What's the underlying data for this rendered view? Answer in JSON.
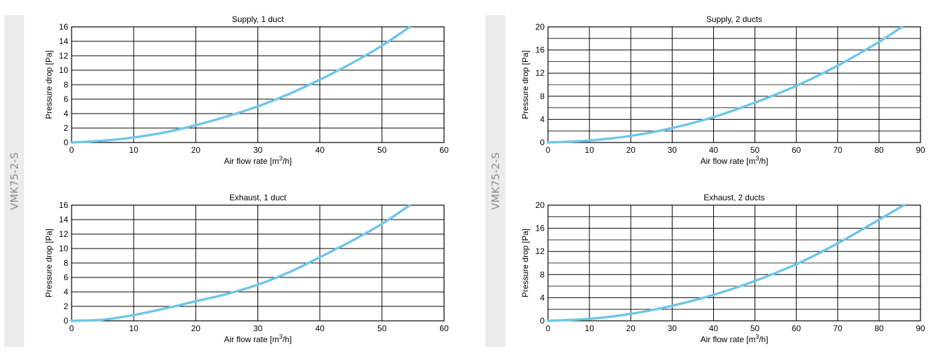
{
  "side_labels": {
    "left": "VMK75-2-S",
    "right": "VMK75-2-S"
  },
  "colors": {
    "curve": "#6ec6e8",
    "grid": "#000000",
    "side_panel": "#ebebeb",
    "side_text": "#8a8a8a"
  },
  "chart_data": [
    {
      "type": "line",
      "title": "Supply, 1 duct",
      "xlabel": "Air flow rate [m³/h]",
      "ylabel": "Pressure drop [Pa]",
      "xlim": [
        0,
        60
      ],
      "ylim": [
        0,
        16
      ],
      "xticks": [
        0,
        10,
        20,
        30,
        40,
        50,
        60
      ],
      "yticks": [
        0,
        2,
        4,
        6,
        8,
        10,
        12,
        14,
        16
      ],
      "grid": true,
      "series": [
        {
          "x": [
            0,
            5,
            10,
            15,
            20,
            25,
            30,
            35,
            40,
            45,
            50,
            54.5
          ],
          "y": [
            0,
            0.25,
            0.7,
            1.4,
            2.4,
            3.6,
            5.0,
            6.7,
            8.7,
            10.9,
            13.4,
            16.0
          ]
        }
      ]
    },
    {
      "type": "line",
      "title": "Supply, 2 ducts",
      "xlabel": "Air flow rate [m³/h]",
      "ylabel": "Pressure drop [Pa]",
      "xlim": [
        0,
        90
      ],
      "ylim": [
        0,
        20
      ],
      "xticks": [
        0,
        10,
        20,
        30,
        40,
        50,
        60,
        70,
        80,
        90
      ],
      "yticks": [
        0,
        4,
        8,
        12,
        16,
        20
      ],
      "grid": true,
      "series": [
        {
          "x": [
            0,
            10,
            20,
            30,
            40,
            50,
            60,
            70,
            80,
            85.5
          ],
          "y": [
            0,
            0.35,
            1.15,
            2.5,
            4.4,
            6.9,
            9.8,
            13.3,
            17.4,
            20.0
          ]
        }
      ]
    },
    {
      "type": "line",
      "title": "Exhaust, 1 duct",
      "xlabel": "Air flow rate [m³/h]",
      "ylabel": "Pressure drop [Pa]",
      "xlim": [
        0,
        60
      ],
      "ylim": [
        0,
        16
      ],
      "xticks": [
        0,
        10,
        20,
        30,
        40,
        50,
        60
      ],
      "yticks": [
        0,
        2,
        4,
        6,
        8,
        10,
        12,
        14,
        16
      ],
      "grid": true,
      "series": [
        {
          "x": [
            0,
            5,
            10,
            15,
            20,
            25,
            30,
            35,
            40,
            45,
            50,
            54.5
          ],
          "y": [
            0,
            0.15,
            0.8,
            1.7,
            2.7,
            3.7,
            5.0,
            6.7,
            8.8,
            11.0,
            13.4,
            16.0
          ]
        }
      ]
    },
    {
      "type": "line",
      "title": "Exhaust, 2 ducts",
      "xlabel": "Air flow rate [m³/h]",
      "ylabel": "Pressure drop [Pa]",
      "xlim": [
        0,
        90
      ],
      "ylim": [
        0,
        20
      ],
      "xticks": [
        0,
        10,
        20,
        30,
        40,
        50,
        60,
        70,
        80,
        90
      ],
      "yticks": [
        0,
        4,
        8,
        12,
        16,
        20
      ],
      "grid": true,
      "series": [
        {
          "x": [
            0,
            10,
            20,
            30,
            40,
            50,
            60,
            70,
            80,
            86
          ],
          "y": [
            0,
            0.35,
            1.2,
            2.6,
            4.5,
            6.9,
            9.8,
            13.4,
            17.5,
            20.0
          ]
        }
      ]
    }
  ]
}
